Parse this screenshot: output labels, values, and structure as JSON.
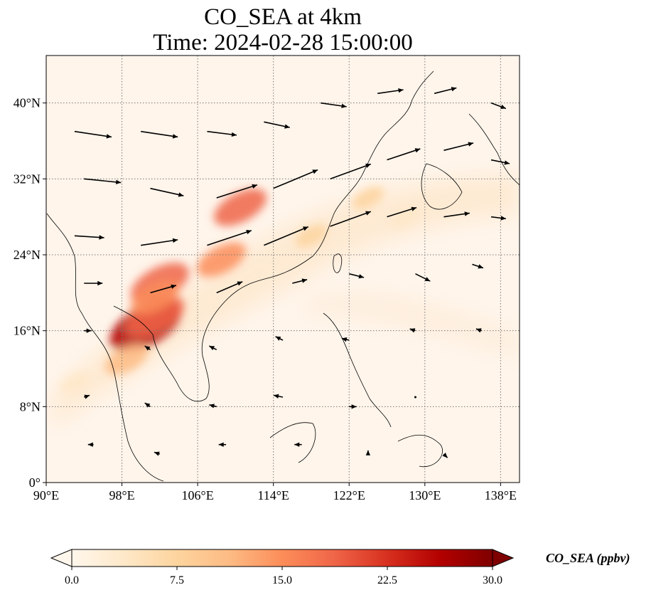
{
  "figure": {
    "title_line1": "CO_SEA at 4km",
    "title_line2": "Time: 2024-02-28 15:00:00",
    "variable": "CO_SEA",
    "units": "ppbv"
  },
  "map": {
    "lon_range": [
      90,
      140
    ],
    "lat_range": [
      0,
      45
    ],
    "lon_ticks": [
      {
        "value": 90,
        "label": "90°E"
      },
      {
        "value": 98,
        "label": "98°E"
      },
      {
        "value": 106,
        "label": "106°E"
      },
      {
        "value": 114,
        "label": "114°E"
      },
      {
        "value": 122,
        "label": "122°E"
      },
      {
        "value": 130,
        "label": "130°E"
      },
      {
        "value": 138,
        "label": "138°E"
      }
    ],
    "lat_ticks": [
      {
        "value": 0,
        "label": "0°"
      },
      {
        "value": 8,
        "label": "8°N"
      },
      {
        "value": 16,
        "label": "16°N"
      },
      {
        "value": 24,
        "label": "24°N"
      },
      {
        "value": 32,
        "label": "32°N"
      },
      {
        "value": 40,
        "label": "40°N"
      }
    ],
    "gridlines": true,
    "gridline_style": "dotted",
    "background_color": "#fff5eb",
    "coastline_color": "#000000",
    "wind_vector_color": "#000000"
  },
  "colorbar": {
    "title": "CO_SEA (ppbv)",
    "min": 0.0,
    "max": 30.0,
    "ticks": [
      {
        "value": 0.0,
        "label": "0.0"
      },
      {
        "value": 7.5,
        "label": "7.5"
      },
      {
        "value": 15.0,
        "label": "15.0"
      },
      {
        "value": 22.5,
        "label": "22.5"
      },
      {
        "value": 30.0,
        "label": "30.0"
      }
    ],
    "extend": "both",
    "colormap": "OrRd",
    "stops": [
      "#fff7ec",
      "#fee8c8",
      "#fdd49e",
      "#fdbb84",
      "#fc8d59",
      "#ef6548",
      "#d7301f",
      "#b30000",
      "#7f0000"
    ]
  },
  "plumes": [
    {
      "lon": 110.5,
      "lat": 29.0,
      "value": 17
    },
    {
      "lon": 100.5,
      "lat": 16.5,
      "value": 27
    },
    {
      "lon": 101.5,
      "lat": 17.5,
      "value": 20
    },
    {
      "lon": 102.0,
      "lat": 21.0,
      "value": 20
    },
    {
      "lon": 108.5,
      "lat": 23.5,
      "value": 15
    },
    {
      "lon": 101.5,
      "lat": 19.5,
      "value": 15
    },
    {
      "lon": 98.5,
      "lat": 13.0,
      "value": 12
    },
    {
      "lon": 118.0,
      "lat": 26.0,
      "value": 6
    },
    {
      "lon": 124.0,
      "lat": 30.0,
      "value": 6
    },
    {
      "lon": 128.0,
      "lat": 28.0,
      "value": 5
    },
    {
      "lon": 93.0,
      "lat": 10.5,
      "value": 5
    }
  ],
  "wind_vectors": [
    {
      "lon": 93,
      "lat": 37,
      "u": 20,
      "v": -3
    },
    {
      "lon": 100,
      "lat": 37,
      "u": 20,
      "v": -3
    },
    {
      "lon": 107,
      "lat": 37,
      "u": 16,
      "v": -2
    },
    {
      "lon": 113,
      "lat": 38,
      "u": 14,
      "v": -3
    },
    {
      "lon": 119,
      "lat": 40,
      "u": 14,
      "v": -2
    },
    {
      "lon": 125,
      "lat": 41,
      "u": 14,
      "v": 2
    },
    {
      "lon": 131,
      "lat": 41,
      "u": 12,
      "v": 3
    },
    {
      "lon": 137,
      "lat": 40,
      "u": 8,
      "v": -3
    },
    {
      "lon": 94,
      "lat": 32,
      "u": 20,
      "v": -2
    },
    {
      "lon": 101,
      "lat": 31,
      "u": 18,
      "v": -4
    },
    {
      "lon": 108,
      "lat": 30,
      "u": 22,
      "v": 7
    },
    {
      "lon": 114,
      "lat": 31,
      "u": 24,
      "v": 10
    },
    {
      "lon": 120,
      "lat": 32,
      "u": 22,
      "v": 8
    },
    {
      "lon": 126,
      "lat": 34,
      "u": 18,
      "v": 6
    },
    {
      "lon": 132,
      "lat": 35,
      "u": 16,
      "v": 4
    },
    {
      "lon": 137,
      "lat": 34,
      "u": 10,
      "v": -2
    },
    {
      "lon": 93,
      "lat": 26,
      "u": 16,
      "v": -1
    },
    {
      "lon": 100,
      "lat": 25,
      "u": 20,
      "v": 3
    },
    {
      "lon": 107,
      "lat": 25,
      "u": 24,
      "v": 8
    },
    {
      "lon": 113,
      "lat": 25,
      "u": 24,
      "v": 10
    },
    {
      "lon": 120,
      "lat": 27,
      "u": 22,
      "v": 8
    },
    {
      "lon": 126,
      "lat": 28,
      "u": 16,
      "v": 5
    },
    {
      "lon": 132,
      "lat": 28,
      "u": 14,
      "v": 2
    },
    {
      "lon": 137,
      "lat": 28,
      "u": 8,
      "v": -1
    },
    {
      "lon": 94,
      "lat": 21,
      "u": 10,
      "v": 0
    },
    {
      "lon": 101,
      "lat": 20,
      "u": 14,
      "v": 4
    },
    {
      "lon": 108,
      "lat": 20,
      "u": 14,
      "v": 6
    },
    {
      "lon": 116,
      "lat": 21,
      "u": 8,
      "v": 2
    },
    {
      "lon": 122,
      "lat": 22,
      "u": 8,
      "v": -2
    },
    {
      "lon": 129,
      "lat": 22,
      "u": 8,
      "v": -4
    },
    {
      "lon": 135,
      "lat": 23,
      "u": 6,
      "v": -2
    },
    {
      "lon": 94,
      "lat": 16,
      "u": 4,
      "v": 0
    },
    {
      "lon": 101,
      "lat": 14,
      "u": -3,
      "v": 2
    },
    {
      "lon": 108,
      "lat": 14,
      "u": -4,
      "v": 2
    },
    {
      "lon": 115,
      "lat": 15,
      "u": -4,
      "v": 2
    },
    {
      "lon": 122,
      "lat": 15,
      "u": -4,
      "v": 1
    },
    {
      "lon": 129,
      "lat": 16,
      "u": -3,
      "v": 1
    },
    {
      "lon": 136,
      "lat": 16,
      "u": -3,
      "v": 1
    },
    {
      "lon": 94,
      "lat": 9,
      "u": 3,
      "v": 1
    },
    {
      "lon": 101,
      "lat": 8,
      "u": -3,
      "v": 2
    },
    {
      "lon": 108,
      "lat": 8,
      "u": -4,
      "v": 1
    },
    {
      "lon": 115,
      "lat": 9,
      "u": -5,
      "v": 1
    },
    {
      "lon": 122,
      "lat": 8,
      "u": 4,
      "v": 0
    },
    {
      "lon": 129,
      "lat": 9,
      "u": 0,
      "v": 0
    },
    {
      "lon": 95,
      "lat": 4,
      "u": -3,
      "v": 0
    },
    {
      "lon": 102,
      "lat": 3,
      "u": -3,
      "v": 1
    },
    {
      "lon": 109,
      "lat": 4,
      "u": -4,
      "v": 0
    },
    {
      "lon": 117,
      "lat": 4,
      "u": -4,
      "v": 0
    },
    {
      "lon": 124,
      "lat": 3,
      "u": 0,
      "v": 2
    },
    {
      "lon": 132,
      "lat": 3,
      "u": 2,
      "v": -2
    }
  ]
}
